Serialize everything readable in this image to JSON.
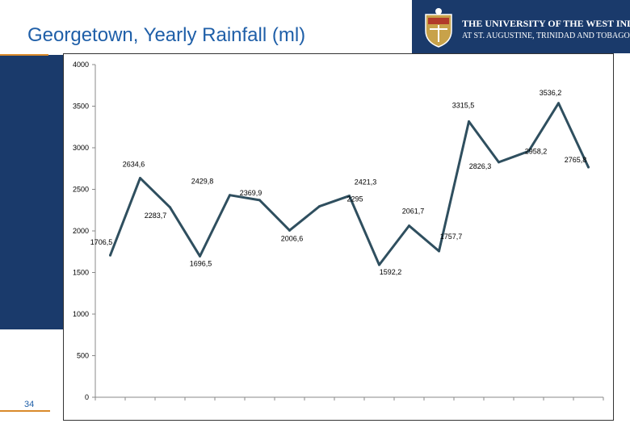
{
  "slide": {
    "title": "Georgetown, Yearly Rainfall (ml)",
    "page_number": "34"
  },
  "logo": {
    "line1": "THE UNIVERSITY OF THE WEST INDIES",
    "line2": "AT ST. AUGUSTINE, TRINIDAD AND TOBAGO"
  },
  "colors": {
    "navy": "#1a3a6b",
    "title_blue": "#1f5fa8",
    "accent_orange": "#d98a2b",
    "series_line": "#2f4f5f"
  },
  "chart_data": {
    "type": "line",
    "title": "",
    "xlabel": "",
    "ylabel": "",
    "ylim": [
      0,
      4000
    ],
    "yticks": [
      0,
      500,
      1000,
      1500,
      2000,
      2500,
      3000,
      3500,
      4000
    ],
    "grid": false,
    "legend": "none",
    "series": [
      {
        "values": [
          1706.5,
          2634.6,
          2283.7,
          1696.5,
          2429.8,
          2369.9,
          2006.6,
          2295,
          2421.3,
          1592.2,
          2061.7,
          1757.7,
          3315.5,
          2826.3,
          2958.2,
          3536.2,
          2765.8
        ],
        "labels": [
          "1706,5",
          "2634,6",
          "2283,7",
          "1696,5",
          "2429,8",
          "2369,9",
          "2006,6",
          "2295",
          "2421,3",
          "1592,2",
          "2061,7",
          "1757,7",
          "3315,5",
          "2826,3",
          "2958,2",
          "3536,2",
          "2765,8"
        ]
      }
    ]
  }
}
